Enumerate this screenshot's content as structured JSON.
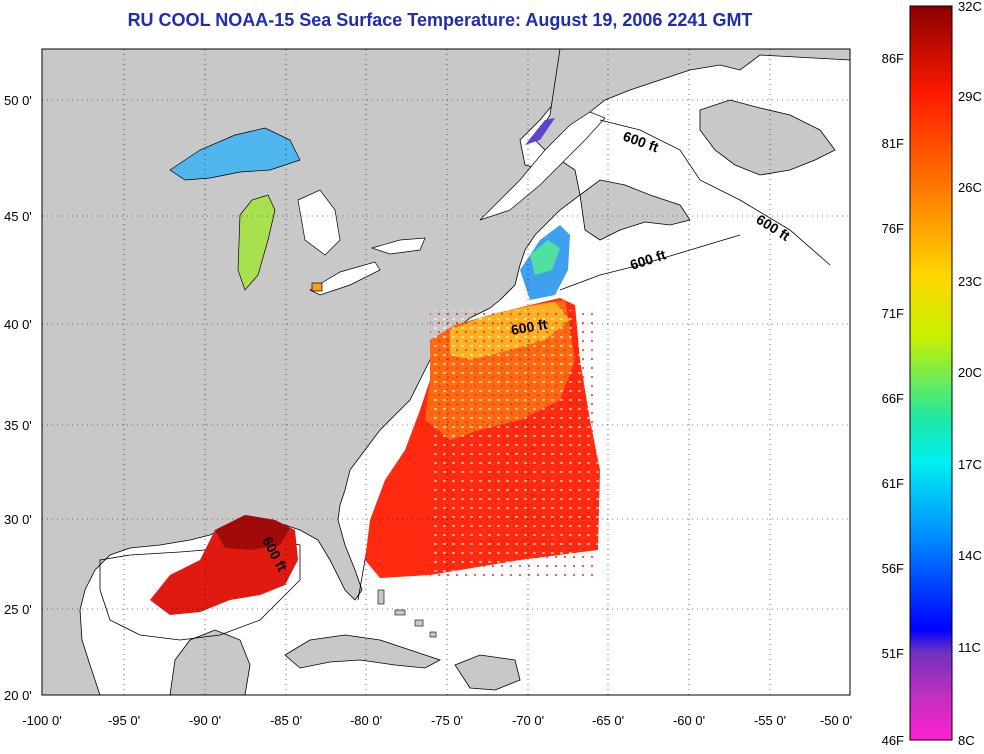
{
  "title": "RU COOL  NOAA-15  Sea Surface Temperature:  August 19, 2006 2241 GMT",
  "map": {
    "lat_ticks": [
      "50 0'",
      "45 0'",
      "40 0'",
      "35 0'",
      "30 0'",
      "25 0'",
      "20 0'"
    ],
    "lon_ticks": [
      "-100 0'",
      "-95 0'",
      "-90 0'",
      "-85 0'",
      "-80 0'",
      "-75 0'",
      "-70 0'",
      "-65 0'",
      "-60 0'",
      "-55 0'",
      "-50 0'"
    ],
    "contour_label": "600 ft",
    "colors": {
      "land": "#c8c8c8",
      "ocean": "#ffffff",
      "title": "#1f2cb4"
    }
  },
  "colorbar": {
    "fahrenheit": [
      "86F",
      "81F",
      "76F",
      "71F",
      "66F",
      "61F",
      "56F",
      "51F",
      "46F"
    ],
    "celsius": [
      "32C",
      "29C",
      "26C",
      "23C",
      "20C",
      "17C",
      "14C",
      "11C",
      "8C"
    ]
  }
}
